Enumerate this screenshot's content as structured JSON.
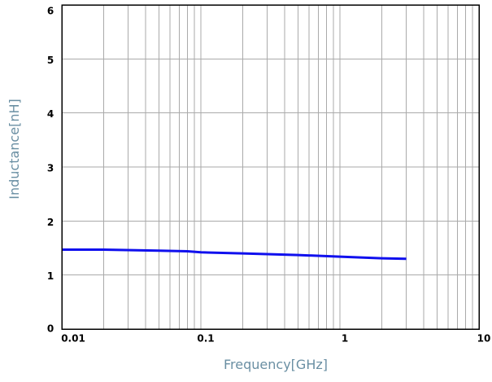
{
  "chart_data": {
    "type": "line",
    "title": "",
    "xlabel": "Frequency[GHz]",
    "ylabel": "Inductance[nH]",
    "xscale": "log",
    "xlim": [
      0.01,
      10
    ],
    "ylim": [
      0,
      6
    ],
    "grid": true,
    "legend": "none",
    "x_ticks": [
      {
        "value": 0.01,
        "label": "0.01"
      },
      {
        "value": 0.1,
        "label": "0.1"
      },
      {
        "value": 1,
        "label": "1"
      },
      {
        "value": 10,
        "label": "10"
      }
    ],
    "y_ticks": [
      {
        "value": 0,
        "label": "0"
      },
      {
        "value": 1,
        "label": "1"
      },
      {
        "value": 2,
        "label": "2"
      },
      {
        "value": 3,
        "label": "3"
      },
      {
        "value": 4,
        "label": "4"
      },
      {
        "value": 5,
        "label": "5"
      },
      {
        "value": 6,
        "label": "6"
      }
    ],
    "series": [
      {
        "color": "#1010ee",
        "x": [
          0.01,
          0.02,
          0.05,
          0.08,
          0.1,
          0.2,
          0.5,
          1,
          2,
          3
        ],
        "y": [
          1.47,
          1.47,
          1.45,
          1.44,
          1.42,
          1.4,
          1.37,
          1.34,
          1.31,
          1.3
        ]
      }
    ]
  },
  "colors": {
    "grid": "#aaaaaa",
    "axis": "#000000",
    "axis_label": "#6a8fa3"
  }
}
